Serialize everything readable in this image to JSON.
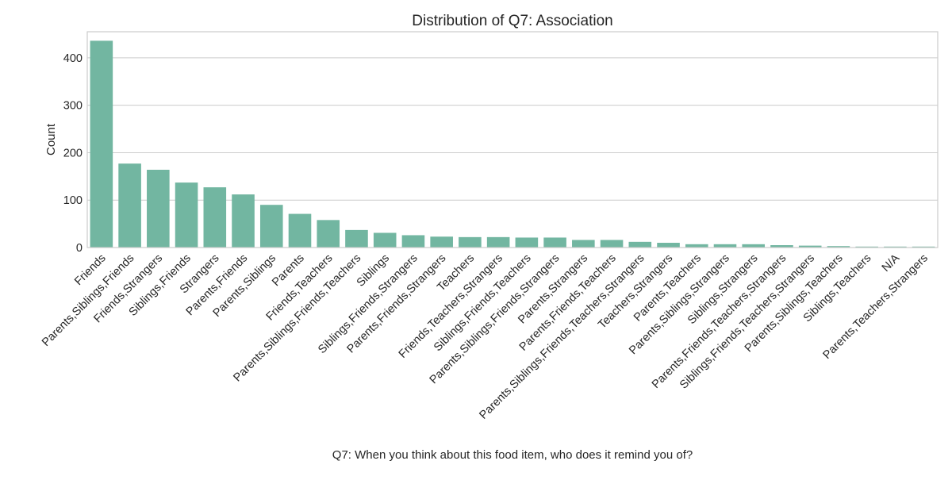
{
  "chart_data": {
    "type": "bar",
    "title": "Distribution of Q7: Association",
    "xlabel": "Q7: When you think about this food item, who does it remind you of?",
    "ylabel": "Count",
    "ylim": [
      0,
      455
    ],
    "yticks": [
      0,
      100,
      200,
      300,
      400
    ],
    "grid": true,
    "bar_color": "#72b6a1",
    "categories": [
      "Friends",
      "Parents,Siblings,Friends",
      "Friends,Strangers",
      "Siblings,Friends",
      "Strangers",
      "Parents,Friends",
      "Parents,Siblings",
      "Parents",
      "Friends,Teachers",
      "Parents,Siblings,Friends,Teachers",
      "Siblings",
      "Siblings,Friends,Strangers",
      "Parents,Friends,Strangers",
      "Teachers",
      "Friends,Teachers,Strangers",
      "Siblings,Friends,Teachers",
      "Parents,Siblings,Friends,Strangers",
      "Parents,Strangers",
      "Parents,Friends,Teachers",
      "Parents,Siblings,Friends,Teachers,Strangers",
      "Teachers,Strangers",
      "Parents,Teachers",
      "Parents,Siblings,Strangers",
      "Siblings,Strangers",
      "Parents,Friends,Teachers,Strangers",
      "Siblings,Friends,Teachers,Strangers",
      "Parents,Siblings,Teachers",
      "Siblings,Teachers",
      "N/A",
      "Parents,Teachers,Strangers"
    ],
    "values": [
      436,
      177,
      164,
      137,
      127,
      112,
      90,
      71,
      58,
      37,
      31,
      26,
      23,
      22,
      22,
      21,
      21,
      16,
      16,
      12,
      10,
      7,
      7,
      7,
      5,
      4,
      3,
      2,
      2,
      2
    ]
  }
}
